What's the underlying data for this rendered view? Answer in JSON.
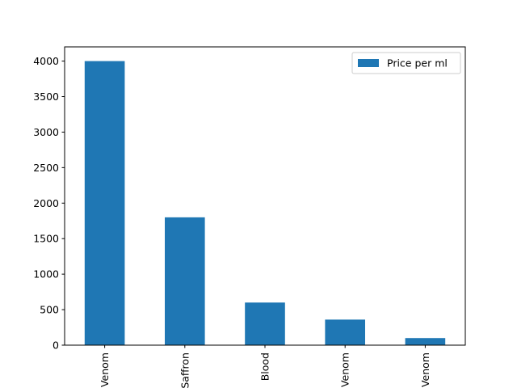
{
  "chart_data": {
    "type": "bar",
    "categories": [
      "Venom",
      "Saffron",
      "Blood",
      "Venom",
      "Venom"
    ],
    "series": [
      {
        "name": "Price per ml",
        "values": [
          4000,
          1800,
          600,
          360,
          100
        ],
        "color": "#1f77b4"
      }
    ],
    "title": "",
    "xlabel": "",
    "ylabel": "",
    "ylim": [
      0,
      4200
    ],
    "yticks": [
      0,
      500,
      1000,
      1500,
      2000,
      2500,
      3000,
      3500,
      4000
    ],
    "grid": false,
    "legend_position": "top-right"
  }
}
